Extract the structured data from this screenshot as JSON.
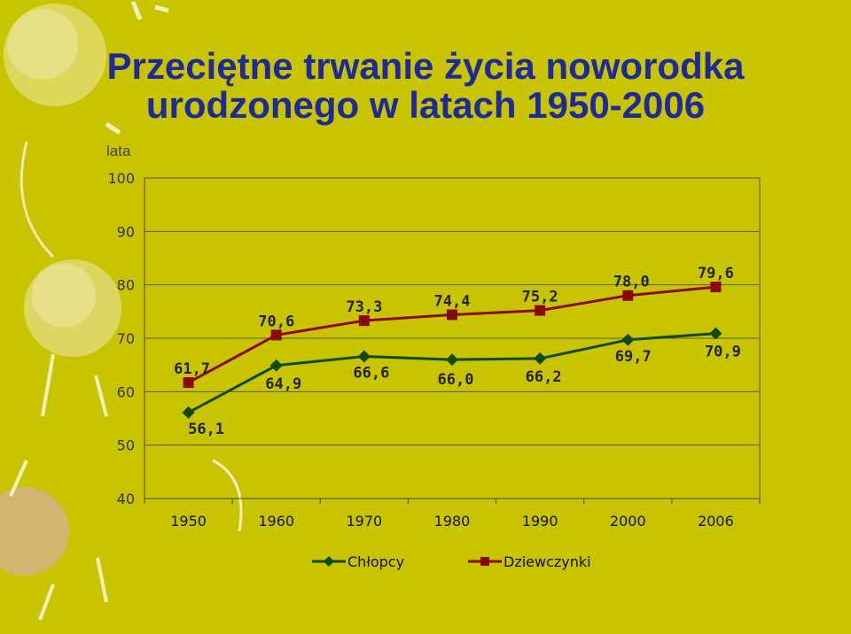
{
  "title": {
    "line1": "Przeciętne trwanie życia noworodka",
    "line2": "urodzonego w latach 1950-2006"
  },
  "colors": {
    "background": "#c8c400",
    "title": "#1e2a9a",
    "boys": "#0f4a0f",
    "girls": "#8a0a0a"
  },
  "chart_data": {
    "type": "line",
    "ylabel": "lata",
    "ylim": [
      40,
      100
    ],
    "yticks": [
      "40",
      "50",
      "60",
      "70",
      "80",
      "90",
      "100"
    ],
    "categories": [
      "1950",
      "1960",
      "1970",
      "1980",
      "1990",
      "2000",
      "2006"
    ],
    "grid": true,
    "legend_position": "bottom",
    "series": [
      {
        "name": "Chłopcy",
        "marker": "diamond",
        "values": [
          56.1,
          64.9,
          66.6,
          66.0,
          66.2,
          69.7,
          70.9
        ],
        "labels": [
          "56,1",
          "64,9",
          "66,6",
          "66,0",
          "66,2",
          "69,7",
          "70,9"
        ]
      },
      {
        "name": "Dziewczynki",
        "marker": "square",
        "values": [
          61.7,
          70.6,
          73.3,
          74.4,
          75.2,
          78.0,
          79.6
        ],
        "labels": [
          "61,7",
          "70,6",
          "73,3",
          "74,4",
          "75,2",
          "78,0",
          "79,6"
        ]
      }
    ]
  }
}
